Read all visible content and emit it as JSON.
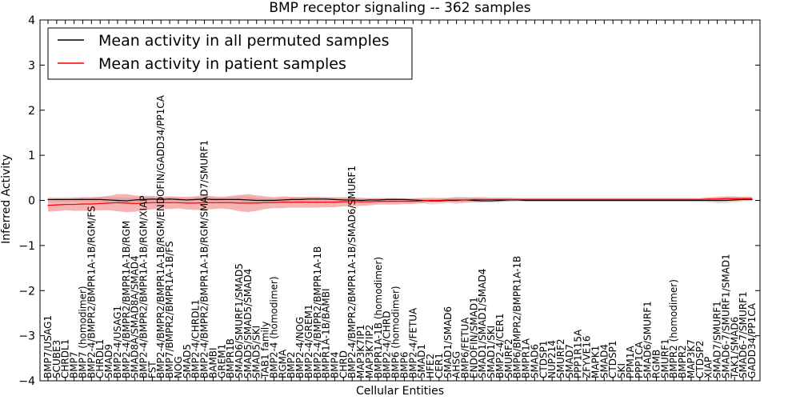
{
  "chart_data": {
    "type": "line",
    "title": "BMP receptor signaling -- 362 samples",
    "xlabel": "Cellular Entities",
    "ylabel": "Inferred Activity",
    "ylim": [
      -4,
      4
    ],
    "yticks": [
      -4,
      -3,
      -2,
      -1,
      0,
      1,
      2,
      3,
      4
    ],
    "grid": false,
    "legend_position": "top-left",
    "categories": [
      "BMP7/USAG1",
      "SCUBE3",
      "CHRDL1",
      "BMP7",
      "BMP7 (homodimer)",
      "BMP2-4/BMPR2/BMPR1A-1B/RGM/FS",
      "CHRDL1",
      "SMAD9",
      "BMP2-4/USAG1",
      "BMP2-4/BMPR2/BMPR1A-1B/RGM",
      "SMAD8A/SMAD8A/SMAD4",
      "BMP2-4/BMPR2/BMPR1A-1B/RGM/XIAP",
      "FST",
      "BMP2-4/BMPR2/BMPR1A-1B/RGM/ENDOFIN/GADD34/PP1CA",
      "BMP7/BMPR2/BMPR1A-1B/FS",
      "NOG",
      "SMAD5",
      "BMP2-4/CHRDL1",
      "BMP2-4/BMPR2/BMPR1A-1B/RGM/SMAD7/SMURF1",
      "BAMBI",
      "GREM1",
      "BMPR1B",
      "SMAD6/SMURF1/SMAD5",
      "SMAD5/SMAD5/SMAD4",
      "SMAD5/SKI",
      "TAB1 family",
      "BMP2-4 (homodimer)",
      "RGMA",
      "BMP2",
      "BMP2-4/NOG",
      "BMP2-4/GREM1",
      "BMP2-4/BMPR2/BMPR1A-1B",
      "BMPR1A-1B/BAMBI",
      "BMP4",
      "CHRD",
      "BMP2-4/BMPR2/BMPR1A-1B/SMAD6/SMURF1",
      "MAP3K7IP1",
      "MAP3K7IP2",
      "BMPR1A-1B (homodimer)",
      "BMP2-4/CHRD",
      "BMP6 (homodimer)",
      "BMP6",
      "BMP2-4/FETUA",
      "SMAD1",
      "HFE2",
      "CER1",
      "SMAD1/SMAD6",
      "AHSG",
      "BMP6/FETUA",
      "ENDOFIN/SMAD1",
      "SMAD1/SMAD1/SMAD4",
      "SMAD1/SKI",
      "BMP2-4/CER1",
      "SMURF2",
      "BMP6/BMPR2/BMPR1A-1B",
      "BMPR1A",
      "SMAD6",
      "CTDSP1",
      "NUP214",
      "SMURF2",
      "SMAD7",
      "PPP1R15A",
      "ZFYVE16",
      "MAPK1",
      "SMAD4",
      "CTDSP1",
      "SKI",
      "PPM1A",
      "PPP1CA",
      "SMAD6/SMURF1",
      "RGMB",
      "SMURF1",
      "BMPR2 (homodimer)",
      "BMPR2",
      "MAP3K7",
      "CTDSP2",
      "XIAP",
      "SMAD7/SMURF1",
      "SMAD6-7/SMURF1/SMAD1",
      "TAK1/SMAD6",
      "SMAD6-7/SMURF1",
      "GADD34/PP1CA"
    ],
    "series": [
      {
        "name": "Mean activity in all permuted samples",
        "color": "#000000",
        "band_color": "#aaaaaa",
        "values": [
          0.02,
          0.02,
          0.02,
          0.02,
          0.02,
          0.02,
          0.02,
          0.01,
          0.0,
          -0.01,
          0.01,
          0.02,
          0.03,
          0.02,
          0.03,
          0.02,
          0.01,
          0.02,
          0.03,
          0.02,
          0.02,
          0.02,
          0.02,
          0.01,
          0.0,
          0.0,
          0.0,
          0.01,
          0.02,
          0.02,
          0.03,
          0.03,
          0.03,
          0.02,
          0.01,
          0.01,
          0.0,
          0.01,
          0.01,
          0.02,
          0.02,
          0.02,
          0.01,
          0.0,
          -0.01,
          -0.01,
          0.0,
          0.0,
          0.01,
          0.0,
          -0.01,
          -0.01,
          0.0,
          0.01,
          0.01,
          0.0,
          0.0,
          0.0,
          0.0,
          0.0,
          0.0,
          0.0,
          0.0,
          0.0,
          0.0,
          0.0,
          0.0,
          0.0,
          0.0,
          0.0,
          0.0,
          0.0,
          0.0,
          0.0,
          0.0,
          0.0,
          0.0,
          0.0,
          0.0,
          0.01,
          0.02,
          0.02
        ],
        "band_halfwidth": [
          0.05,
          0.05,
          0.05,
          0.05,
          0.05,
          0.05,
          0.06,
          0.06,
          0.07,
          0.07,
          0.06,
          0.05,
          0.05,
          0.04,
          0.05,
          0.04,
          0.04,
          0.04,
          0.05,
          0.04,
          0.04,
          0.05,
          0.07,
          0.08,
          0.06,
          0.05,
          0.04,
          0.05,
          0.04,
          0.04,
          0.04,
          0.04,
          0.04,
          0.04,
          0.04,
          0.04,
          0.03,
          0.03,
          0.03,
          0.03,
          0.03,
          0.03,
          0.04,
          0.06,
          0.08,
          0.07,
          0.06,
          0.08,
          0.07,
          0.05,
          0.04,
          0.04,
          0.04,
          0.04,
          0.03,
          0.03,
          0.03,
          0.03,
          0.03,
          0.03,
          0.03,
          0.03,
          0.03,
          0.03,
          0.03,
          0.03,
          0.03,
          0.03,
          0.03,
          0.03,
          0.03,
          0.03,
          0.03,
          0.03,
          0.03,
          0.03,
          0.04,
          0.06,
          0.06,
          0.05,
          0.04,
          0.04
        ]
      },
      {
        "name": "Mean activity in patient samples",
        "color": "#ff0000",
        "band_color": "#f08080",
        "values": [
          -0.11,
          -0.1,
          -0.09,
          -0.09,
          -0.08,
          -0.08,
          -0.07,
          -0.06,
          -0.05,
          -0.06,
          -0.07,
          -0.06,
          -0.05,
          -0.05,
          -0.05,
          -0.05,
          -0.06,
          -0.06,
          -0.05,
          -0.05,
          -0.05,
          -0.05,
          -0.06,
          -0.06,
          -0.06,
          -0.05,
          -0.05,
          -0.04,
          -0.04,
          -0.04,
          -0.04,
          -0.04,
          -0.04,
          -0.04,
          -0.03,
          -0.03,
          -0.03,
          -0.03,
          -0.02,
          -0.02,
          -0.02,
          -0.02,
          -0.02,
          -0.01,
          0.0,
          0.0,
          0.01,
          0.01,
          0.01,
          0.02,
          0.02,
          0.02,
          0.02,
          0.02,
          0.02,
          0.02,
          0.02,
          0.02,
          0.02,
          0.02,
          0.02,
          0.02,
          0.02,
          0.02,
          0.02,
          0.02,
          0.02,
          0.02,
          0.02,
          0.02,
          0.02,
          0.02,
          0.02,
          0.02,
          0.02,
          0.02,
          0.03,
          0.03,
          0.04,
          0.04,
          0.04,
          0.04
        ],
        "band_halfwidth": [
          0.14,
          0.14,
          0.13,
          0.14,
          0.15,
          0.15,
          0.15,
          0.16,
          0.19,
          0.2,
          0.18,
          0.16,
          0.15,
          0.13,
          0.14,
          0.13,
          0.14,
          0.15,
          0.16,
          0.14,
          0.13,
          0.15,
          0.18,
          0.2,
          0.17,
          0.14,
          0.12,
          0.13,
          0.12,
          0.12,
          0.12,
          0.12,
          0.11,
          0.11,
          0.1,
          0.1,
          0.09,
          0.08,
          0.07,
          0.07,
          0.07,
          0.06,
          0.06,
          0.05,
          0.04,
          0.04,
          0.04,
          0.05,
          0.05,
          0.05,
          0.05,
          0.04,
          0.04,
          0.04,
          0.03,
          0.03,
          0.03,
          0.03,
          0.03,
          0.03,
          0.03,
          0.03,
          0.03,
          0.03,
          0.03,
          0.03,
          0.03,
          0.03,
          0.03,
          0.03,
          0.03,
          0.03,
          0.03,
          0.03,
          0.03,
          0.03,
          0.04,
          0.05,
          0.05,
          0.05,
          0.04,
          0.04
        ]
      }
    ]
  }
}
